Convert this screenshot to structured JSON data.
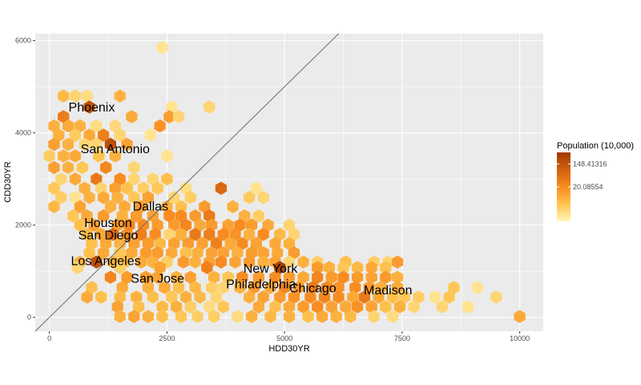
{
  "chart_data": {
    "type": "hexbin",
    "xlabel": "HDD30YR",
    "ylabel": "CDD30YR",
    "xlim": [
      -300,
      10500
    ],
    "ylim": [
      -300,
      6150
    ],
    "x_ticks": [
      0,
      2500,
      5000,
      7500,
      10000
    ],
    "y_ticks": [
      0,
      2000,
      4000,
      6000
    ],
    "reference_line": {
      "slope": 1,
      "intercept": 0
    },
    "legend": {
      "title": "Population (10,000)",
      "position": "right",
      "breaks": [
        148.41316,
        20.08554
      ],
      "break_labels": [
        "148.41316",
        "20.08554"
      ],
      "log_range": [
        0,
        6
      ],
      "colors": [
        "#FFF7BC",
        "#FEC44F",
        "#F88C20",
        "#D2600F",
        "#A03A04"
      ]
    },
    "labels": [
      {
        "text": "Phoenix",
        "x": 900,
        "y": 4550
      },
      {
        "text": "San Antonio",
        "x": 1400,
        "y": 3650
      },
      {
        "text": "Dallas",
        "x": 2150,
        "y": 2400
      },
      {
        "text": "Houston",
        "x": 1250,
        "y": 2050
      },
      {
        "text": "San Diego",
        "x": 1250,
        "y": 1780
      },
      {
        "text": "Los Angeles",
        "x": 1200,
        "y": 1220
      },
      {
        "text": "San Jose",
        "x": 2300,
        "y": 840
      },
      {
        "text": "New York",
        "x": 4700,
        "y": 1060
      },
      {
        "text": "Philadelphia",
        "x": 4500,
        "y": 720
      },
      {
        "text": "Chicago",
        "x": 5600,
        "y": 630
      },
      {
        "text": "Madison",
        "x": 7200,
        "y": 590
      }
    ],
    "hex_bins": [
      [
        2400,
        5850,
        0.6
      ],
      [
        300,
        4800,
        1.8
      ],
      [
        550,
        4800,
        1.0
      ],
      [
        800,
        4800,
        0.8
      ],
      [
        1500,
        4800,
        2.0
      ],
      [
        850,
        4560,
        5.0
      ],
      [
        2600,
        4560,
        0.6
      ],
      [
        3400,
        4560,
        1.0
      ],
      [
        300,
        4350,
        3.5
      ],
      [
        1750,
        4350,
        2.2
      ],
      [
        2550,
        4350,
        2.5
      ],
      [
        2750,
        4350,
        1.0
      ],
      [
        100,
        4150,
        2.0
      ],
      [
        400,
        4150,
        2.2
      ],
      [
        650,
        4150,
        2.0
      ],
      [
        1000,
        4150,
        0.8
      ],
      [
        1400,
        4150,
        0.9
      ],
      [
        2350,
        4150,
        2.8
      ],
      [
        200,
        3950,
        2.0
      ],
      [
        550,
        3950,
        1.3
      ],
      [
        850,
        3950,
        2.2
      ],
      [
        1150,
        3950,
        3.4
      ],
      [
        1500,
        3950,
        1.0
      ],
      [
        2150,
        3950,
        0.6
      ],
      [
        100,
        3750,
        2.5
      ],
      [
        400,
        3750,
        2.0
      ],
      [
        750,
        3750,
        1.0
      ],
      [
        1000,
        3750,
        1.0
      ],
      [
        1300,
        3750,
        5.2
      ],
      [
        1650,
        3750,
        2.4
      ],
      [
        0,
        3500,
        1.3
      ],
      [
        300,
        3500,
        2.0
      ],
      [
        550,
        3500,
        2.2
      ],
      [
        1050,
        3500,
        1.5
      ],
      [
        1400,
        3500,
        2.0
      ],
      [
        2500,
        3500,
        0.6
      ],
      [
        100,
        3250,
        2.5
      ],
      [
        400,
        3250,
        2.0
      ],
      [
        700,
        3250,
        1.4
      ],
      [
        1200,
        3250,
        3.2
      ],
      [
        1800,
        3250,
        1.0
      ],
      [
        250,
        3000,
        1.0
      ],
      [
        550,
        3000,
        2.2
      ],
      [
        1000,
        3000,
        3.6
      ],
      [
        1500,
        3000,
        3.0
      ],
      [
        1800,
        3000,
        1.0
      ],
      [
        2200,
        3000,
        1.0
      ],
      [
        2500,
        3000,
        1.6
      ],
      [
        100,
        2800,
        1.4
      ],
      [
        750,
        2800,
        2.0
      ],
      [
        1100,
        2800,
        1.0
      ],
      [
        1400,
        2800,
        2.5
      ],
      [
        1650,
        2800,
        1.6
      ],
      [
        2000,
        2800,
        1.2
      ],
      [
        2300,
        2800,
        1.4
      ],
      [
        2900,
        2800,
        0.8
      ],
      [
        3650,
        2800,
        4.2
      ],
      [
        4400,
        2800,
        0.6
      ],
      [
        250,
        2600,
        1.2
      ],
      [
        550,
        2600,
        0.6
      ],
      [
        850,
        2600,
        2.0
      ],
      [
        1150,
        2600,
        2.2
      ],
      [
        1450,
        2600,
        2.0
      ],
      [
        1800,
        2600,
        1.4
      ],
      [
        2100,
        2600,
        2.4
      ],
      [
        2650,
        2600,
        1.0
      ],
      [
        3000,
        2600,
        1.2
      ],
      [
        4250,
        2600,
        1.3
      ],
      [
        4550,
        2600,
        1.0
      ],
      [
        100,
        2400,
        1.8
      ],
      [
        650,
        2400,
        2.4
      ],
      [
        1300,
        2400,
        2.0
      ],
      [
        1600,
        2400,
        2.2
      ],
      [
        1950,
        2400,
        2.6
      ],
      [
        2500,
        2400,
        2.0
      ],
      [
        2800,
        2400,
        1.6
      ],
      [
        3300,
        2400,
        2.6
      ],
      [
        3900,
        2400,
        2.0
      ],
      [
        500,
        2200,
        1.4
      ],
      [
        800,
        2200,
        2.2
      ],
      [
        1150,
        2200,
        2.6
      ],
      [
        1550,
        2200,
        2.0
      ],
      [
        1850,
        2200,
        2.6
      ],
      [
        2200,
        2200,
        2.4
      ],
      [
        2550,
        2200,
        3.0
      ],
      [
        2800,
        2200,
        3.0
      ],
      [
        3100,
        2200,
        2.6
      ],
      [
        3400,
        2200,
        3.6
      ],
      [
        4150,
        2200,
        2.0
      ],
      [
        4450,
        2200,
        1.2
      ],
      [
        650,
        2000,
        1.6
      ],
      [
        950,
        2000,
        2.4
      ],
      [
        1450,
        2000,
        2.6
      ],
      [
        1700,
        2000,
        3.2
      ],
      [
        2000,
        2000,
        3.0
      ],
      [
        2300,
        2000,
        2.6
      ],
      [
        2650,
        2000,
        2.6
      ],
      [
        2900,
        2000,
        3.2
      ],
      [
        3200,
        2000,
        2.2
      ],
      [
        3450,
        2000,
        2.6
      ],
      [
        3800,
        2000,
        2.4
      ],
      [
        4050,
        2000,
        3.0
      ],
      [
        4300,
        2000,
        2.6
      ],
      [
        4650,
        2000,
        2.2
      ],
      [
        5100,
        2000,
        1.0
      ],
      [
        800,
        1800,
        1.8
      ],
      [
        1100,
        1800,
        2.2
      ],
      [
        1350,
        1800,
        4.2
      ],
      [
        1650,
        1800,
        3.0
      ],
      [
        1950,
        1800,
        3.4
      ],
      [
        2250,
        1800,
        3.0
      ],
      [
        2550,
        1800,
        1.0
      ],
      [
        2800,
        1800,
        2.0
      ],
      [
        3100,
        1800,
        3.6
      ],
      [
        3400,
        1800,
        3.4
      ],
      [
        3700,
        1800,
        3.0
      ],
      [
        3950,
        1800,
        2.8
      ],
      [
        4250,
        1800,
        2.0
      ],
      [
        4550,
        1800,
        3.0
      ],
      [
        4900,
        1800,
        1.8
      ],
      [
        5200,
        1800,
        1.0
      ],
      [
        900,
        1600,
        1.6
      ],
      [
        1200,
        1600,
        2.2
      ],
      [
        1500,
        1600,
        2.0
      ],
      [
        1800,
        1600,
        2.4
      ],
      [
        2100,
        1600,
        2.6
      ],
      [
        2350,
        1600,
        1.8
      ],
      [
        2650,
        1600,
        2.4
      ],
      [
        2950,
        1600,
        2.6
      ],
      [
        3250,
        1600,
        2.4
      ],
      [
        3550,
        1600,
        3.4
      ],
      [
        3850,
        1600,
        2.2
      ],
      [
        4100,
        1600,
        3.0
      ],
      [
        4400,
        1600,
        2.4
      ],
      [
        4800,
        1600,
        2.2
      ],
      [
        5100,
        1600,
        2.0
      ],
      [
        850,
        1400,
        1.6
      ],
      [
        1150,
        1400,
        2.2
      ],
      [
        1500,
        1400,
        1.4
      ],
      [
        1750,
        1400,
        2.2
      ],
      [
        2050,
        1400,
        2.6
      ],
      [
        2300,
        1400,
        2.6
      ],
      [
        2600,
        1400,
        2.2
      ],
      [
        2900,
        1400,
        1.6
      ],
      [
        3150,
        1400,
        2.0
      ],
      [
        3450,
        1400,
        2.4
      ],
      [
        3700,
        1400,
        2.4
      ],
      [
        4000,
        1400,
        2.0
      ],
      [
        4300,
        1400,
        2.6
      ],
      [
        4550,
        1400,
        2.4
      ],
      [
        4850,
        1400,
        2.2
      ],
      [
        5200,
        1400,
        2.6
      ],
      [
        650,
        1200,
        2.0
      ],
      [
        1000,
        1200,
        5.2
      ],
      [
        1350,
        1200,
        2.0
      ],
      [
        1600,
        1200,
        1.8
      ],
      [
        1950,
        1200,
        2.2
      ],
      [
        2200,
        1200,
        2.0
      ],
      [
        2500,
        1200,
        1.2
      ],
      [
        2850,
        1200,
        2.6
      ],
      [
        3100,
        1200,
        2.0
      ],
      [
        3400,
        1200,
        2.4
      ],
      [
        3650,
        1200,
        3.0
      ],
      [
        3950,
        1200,
        2.4
      ],
      [
        4250,
        1200,
        2.6
      ],
      [
        4550,
        1200,
        2.0
      ],
      [
        4800,
        1200,
        2.4
      ],
      [
        5100,
        1200,
        1.0
      ],
      [
        5400,
        1200,
        2.0
      ],
      [
        5700,
        1200,
        1.2
      ],
      [
        6300,
        1200,
        1.6
      ],
      [
        6900,
        1200,
        1.2
      ],
      [
        7200,
        1200,
        1.0
      ],
      [
        7400,
        1200,
        2.6
      ],
      [
        600,
        1080,
        1.0
      ],
      [
        1500,
        1080,
        1.2
      ],
      [
        2350,
        1080,
        2.4
      ],
      [
        3350,
        1080,
        3.4
      ],
      [
        4900,
        1080,
        5.6
      ],
      [
        5700,
        1080,
        2.6
      ],
      [
        5950,
        1080,
        2.0
      ],
      [
        6250,
        1080,
        1.4
      ],
      [
        6550,
        1080,
        1.8
      ],
      [
        6850,
        1080,
        2.2
      ],
      [
        7150,
        1080,
        1.6
      ],
      [
        1300,
        870,
        3.2
      ],
      [
        1650,
        870,
        2.6
      ],
      [
        2050,
        870,
        2.6
      ],
      [
        2300,
        870,
        2.4
      ],
      [
        2700,
        870,
        2.0
      ],
      [
        3000,
        870,
        2.4
      ],
      [
        3500,
        870,
        2.0
      ],
      [
        3800,
        870,
        1.4
      ],
      [
        4100,
        870,
        3.0
      ],
      [
        4450,
        870,
        2.6
      ],
      [
        4800,
        870,
        3.0
      ],
      [
        5100,
        870,
        2.6
      ],
      [
        5400,
        870,
        2.2
      ],
      [
        5700,
        870,
        3.2
      ],
      [
        6000,
        870,
        2.6
      ],
      [
        6250,
        870,
        3.0
      ],
      [
        6550,
        870,
        2.6
      ],
      [
        6850,
        870,
        2.4
      ],
      [
        7150,
        870,
        2.6
      ],
      [
        7400,
        870,
        2.0
      ],
      [
        900,
        650,
        1.6
      ],
      [
        1550,
        650,
        2.2
      ],
      [
        2100,
        650,
        2.0
      ],
      [
        2450,
        650,
        2.2
      ],
      [
        2750,
        650,
        1.6
      ],
      [
        3100,
        650,
        1.8
      ],
      [
        3450,
        650,
        1.2
      ],
      [
        3700,
        650,
        1.0
      ],
      [
        4050,
        650,
        2.0
      ],
      [
        4350,
        650,
        2.6
      ],
      [
        4700,
        650,
        2.2
      ],
      [
        5000,
        650,
        3.2
      ],
      [
        5300,
        650,
        2.6
      ],
      [
        5600,
        650,
        3.6
      ],
      [
        5900,
        650,
        3.0
      ],
      [
        6150,
        650,
        2.8
      ],
      [
        6500,
        650,
        3.0
      ],
      [
        6800,
        650,
        2.6
      ],
      [
        7050,
        650,
        2.0
      ],
      [
        7400,
        650,
        2.2
      ],
      [
        8600,
        650,
        1.4
      ],
      [
        9100,
        650,
        0.6
      ],
      [
        800,
        440,
        2.2
      ],
      [
        1100,
        440,
        1.6
      ],
      [
        1500,
        440,
        1.8
      ],
      [
        1850,
        440,
        2.0
      ],
      [
        2200,
        440,
        1.6
      ],
      [
        2600,
        440,
        1.4
      ],
      [
        2900,
        440,
        2.0
      ],
      [
        3200,
        440,
        1.8
      ],
      [
        3550,
        440,
        1.0
      ],
      [
        4250,
        440,
        2.0
      ],
      [
        4550,
        440,
        2.4
      ],
      [
        4900,
        440,
        2.6
      ],
      [
        5200,
        440,
        2.8
      ],
      [
        5550,
        440,
        3.0
      ],
      [
        5850,
        440,
        3.2
      ],
      [
        6150,
        440,
        3.0
      ],
      [
        6450,
        440,
        2.2
      ],
      [
        6700,
        440,
        3.6
      ],
      [
        7000,
        440,
        2.2
      ],
      [
        7300,
        440,
        1.6
      ],
      [
        7550,
        440,
        1.4
      ],
      [
        7850,
        440,
        1.2
      ],
      [
        8200,
        440,
        0.6
      ],
      [
        8500,
        440,
        1.4
      ],
      [
        9500,
        440,
        1.0
      ],
      [
        1450,
        230,
        2.4
      ],
      [
        1900,
        230,
        1.6
      ],
      [
        2400,
        230,
        1.8
      ],
      [
        2700,
        230,
        2.0
      ],
      [
        3000,
        230,
        1.2
      ],
      [
        3400,
        230,
        0.8
      ],
      [
        3700,
        230,
        1.4
      ],
      [
        4450,
        230,
        2.2
      ],
      [
        4800,
        230,
        1.6
      ],
      [
        5100,
        230,
        2.2
      ],
      [
        5400,
        230,
        2.6
      ],
      [
        5700,
        230,
        3.0
      ],
      [
        6000,
        230,
        2.4
      ],
      [
        6300,
        230,
        2.2
      ],
      [
        6550,
        230,
        2.8
      ],
      [
        6850,
        230,
        2.4
      ],
      [
        7150,
        230,
        1.6
      ],
      [
        7450,
        230,
        2.0
      ],
      [
        7750,
        230,
        1.0
      ],
      [
        8350,
        230,
        1.0
      ],
      [
        8900,
        230,
        0.6
      ],
      [
        1500,
        20,
        2.0
      ],
      [
        1800,
        20,
        2.4
      ],
      [
        2100,
        20,
        2.0
      ],
      [
        2400,
        20,
        1.6
      ],
      [
        2800,
        20,
        1.4
      ],
      [
        3150,
        20,
        1.2
      ],
      [
        3500,
        20,
        1.2
      ],
      [
        4000,
        20,
        0.8
      ],
      [
        4300,
        20,
        2.0
      ],
      [
        4700,
        20,
        1.8
      ],
      [
        5100,
        20,
        2.0
      ],
      [
        5500,
        20,
        1.6
      ],
      [
        5800,
        20,
        2.2
      ],
      [
        6100,
        20,
        2.0
      ],
      [
        6400,
        20,
        1.8
      ],
      [
        6900,
        20,
        1.0
      ],
      [
        7300,
        20,
        0.8
      ],
      [
        10000,
        20,
        2.2
      ]
    ]
  }
}
